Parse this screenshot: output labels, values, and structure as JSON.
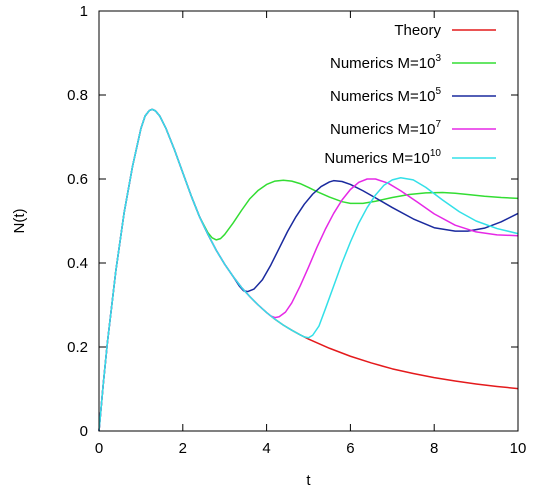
{
  "chart_data": {
    "type": "line",
    "title": "",
    "xlabel": "t",
    "ylabel": "N(t)",
    "xlim": [
      0,
      10
    ],
    "ylim": [
      0,
      1
    ],
    "xticks": [
      0,
      2,
      4,
      6,
      8,
      10
    ],
    "yticks": [
      0,
      0.2,
      0.4,
      0.6,
      0.8,
      1
    ],
    "ytick_labels": [
      "0",
      "0.2",
      "0.4",
      "0.6",
      "0.8",
      "1"
    ],
    "grid": false,
    "legend_position": "top-right",
    "series": [
      {
        "name": "Theory",
        "label_base": "Theory",
        "label_sup": "",
        "color": "#e41a1c",
        "x": [
          0,
          0.1,
          0.2,
          0.4,
          0.6,
          0.8,
          1.0,
          1.1,
          1.2,
          1.27,
          1.35,
          1.45,
          1.6,
          1.8,
          2.0,
          2.2,
          2.4,
          2.6,
          2.8,
          3.0,
          3.2,
          3.4,
          3.6,
          3.8,
          4.0,
          4.2,
          4.4,
          4.6,
          4.8,
          5.0,
          5.5,
          6.0,
          6.5,
          7.0,
          7.5,
          8.0,
          8.5,
          9.0,
          9.5,
          10.0
        ],
        "y": [
          0,
          0.11,
          0.21,
          0.38,
          0.52,
          0.63,
          0.72,
          0.75,
          0.763,
          0.766,
          0.762,
          0.75,
          0.72,
          0.67,
          0.615,
          0.56,
          0.51,
          0.468,
          0.43,
          0.397,
          0.368,
          0.342,
          0.32,
          0.3,
          0.282,
          0.266,
          0.252,
          0.24,
          0.229,
          0.219,
          0.197,
          0.178,
          0.162,
          0.148,
          0.137,
          0.127,
          0.119,
          0.112,
          0.106,
          0.101
        ]
      },
      {
        "name": "Numerics M=10^3",
        "label_base": "Numerics M=10",
        "label_sup": "3",
        "color": "#33dd33",
        "x": [
          0,
          0.1,
          0.2,
          0.4,
          0.6,
          0.8,
          1.0,
          1.1,
          1.2,
          1.27,
          1.35,
          1.45,
          1.6,
          1.8,
          2.0,
          2.2,
          2.4,
          2.6,
          2.7,
          2.8,
          2.9,
          3.0,
          3.2,
          3.4,
          3.6,
          3.8,
          4.0,
          4.2,
          4.4,
          4.6,
          4.8,
          5.0,
          5.2,
          5.5,
          5.8,
          6.0,
          6.3,
          6.6,
          7.0,
          7.4,
          7.8,
          8.2,
          8.5,
          8.8,
          9.2,
          9.6,
          10.0
        ],
        "y": [
          0,
          0.11,
          0.21,
          0.38,
          0.52,
          0.63,
          0.72,
          0.75,
          0.763,
          0.766,
          0.762,
          0.75,
          0.72,
          0.67,
          0.615,
          0.56,
          0.51,
          0.472,
          0.46,
          0.455,
          0.458,
          0.468,
          0.495,
          0.525,
          0.553,
          0.573,
          0.587,
          0.595,
          0.597,
          0.595,
          0.589,
          0.58,
          0.57,
          0.557,
          0.546,
          0.542,
          0.542,
          0.547,
          0.556,
          0.563,
          0.567,
          0.568,
          0.566,
          0.563,
          0.559,
          0.556,
          0.554
        ]
      },
      {
        "name": "Numerics M=10^5",
        "label_base": "Numerics M=10",
        "label_sup": "5",
        "color": "#1a2a9e",
        "x": [
          0,
          0.1,
          0.2,
          0.4,
          0.6,
          0.8,
          1.0,
          1.1,
          1.2,
          1.27,
          1.35,
          1.45,
          1.6,
          1.8,
          2.0,
          2.2,
          2.4,
          2.6,
          2.8,
          3.0,
          3.2,
          3.35,
          3.45,
          3.55,
          3.7,
          3.9,
          4.1,
          4.3,
          4.5,
          4.7,
          4.9,
          5.1,
          5.3,
          5.5,
          5.6,
          5.8,
          6.0,
          6.3,
          6.6,
          7.0,
          7.5,
          8.0,
          8.5,
          8.8,
          9.2,
          9.6,
          10.0
        ],
        "y": [
          0,
          0.11,
          0.21,
          0.38,
          0.52,
          0.63,
          0.72,
          0.75,
          0.763,
          0.766,
          0.762,
          0.75,
          0.72,
          0.67,
          0.615,
          0.56,
          0.51,
          0.468,
          0.43,
          0.397,
          0.368,
          0.345,
          0.334,
          0.332,
          0.338,
          0.36,
          0.395,
          0.435,
          0.475,
          0.51,
          0.54,
          0.564,
          0.582,
          0.593,
          0.596,
          0.594,
          0.587,
          0.572,
          0.555,
          0.532,
          0.505,
          0.484,
          0.476,
          0.476,
          0.483,
          0.498,
          0.518
        ]
      },
      {
        "name": "Numerics M=10^7",
        "label_base": "Numerics M=10",
        "label_sup": "7",
        "color": "#e629e6",
        "x": [
          0,
          0.1,
          0.2,
          0.4,
          0.6,
          0.8,
          1.0,
          1.1,
          1.2,
          1.27,
          1.35,
          1.45,
          1.6,
          1.8,
          2.0,
          2.2,
          2.4,
          2.6,
          2.8,
          3.0,
          3.2,
          3.4,
          3.6,
          3.8,
          4.0,
          4.1,
          4.2,
          4.3,
          4.45,
          4.6,
          4.8,
          5.0,
          5.2,
          5.4,
          5.6,
          5.8,
          6.0,
          6.2,
          6.4,
          6.6,
          6.9,
          7.2,
          7.6,
          8.0,
          8.5,
          9.0,
          9.5,
          10.0
        ],
        "y": [
          0,
          0.11,
          0.21,
          0.38,
          0.52,
          0.63,
          0.72,
          0.75,
          0.763,
          0.766,
          0.762,
          0.75,
          0.72,
          0.67,
          0.615,
          0.56,
          0.51,
          0.468,
          0.43,
          0.397,
          0.368,
          0.342,
          0.32,
          0.3,
          0.282,
          0.274,
          0.27,
          0.272,
          0.283,
          0.305,
          0.345,
          0.39,
          0.437,
          0.48,
          0.518,
          0.55,
          0.575,
          0.592,
          0.6,
          0.6,
          0.59,
          0.572,
          0.545,
          0.517,
          0.49,
          0.474,
          0.467,
          0.465
        ]
      },
      {
        "name": "Numerics M=10^10",
        "label_base": "Numerics M=10",
        "label_sup": "10",
        "color": "#33e0e8",
        "x": [
          0,
          0.1,
          0.2,
          0.4,
          0.6,
          0.8,
          1.0,
          1.1,
          1.2,
          1.27,
          1.35,
          1.45,
          1.6,
          1.8,
          2.0,
          2.2,
          2.4,
          2.6,
          2.8,
          3.0,
          3.2,
          3.4,
          3.6,
          3.8,
          4.0,
          4.2,
          4.4,
          4.6,
          4.8,
          4.9,
          5.0,
          5.1,
          5.25,
          5.4,
          5.6,
          5.8,
          6.0,
          6.2,
          6.4,
          6.6,
          6.8,
          7.0,
          7.2,
          7.5,
          7.8,
          8.2,
          8.6,
          9.0,
          9.5,
          10.0
        ],
        "y": [
          0,
          0.11,
          0.21,
          0.38,
          0.52,
          0.63,
          0.72,
          0.75,
          0.763,
          0.766,
          0.762,
          0.75,
          0.72,
          0.67,
          0.615,
          0.56,
          0.51,
          0.468,
          0.43,
          0.397,
          0.368,
          0.342,
          0.32,
          0.3,
          0.282,
          0.266,
          0.252,
          0.24,
          0.229,
          0.224,
          0.222,
          0.228,
          0.25,
          0.29,
          0.345,
          0.4,
          0.45,
          0.495,
          0.532,
          0.562,
          0.585,
          0.598,
          0.603,
          0.598,
          0.58,
          0.55,
          0.522,
          0.5,
          0.482,
          0.47
        ]
      }
    ]
  }
}
